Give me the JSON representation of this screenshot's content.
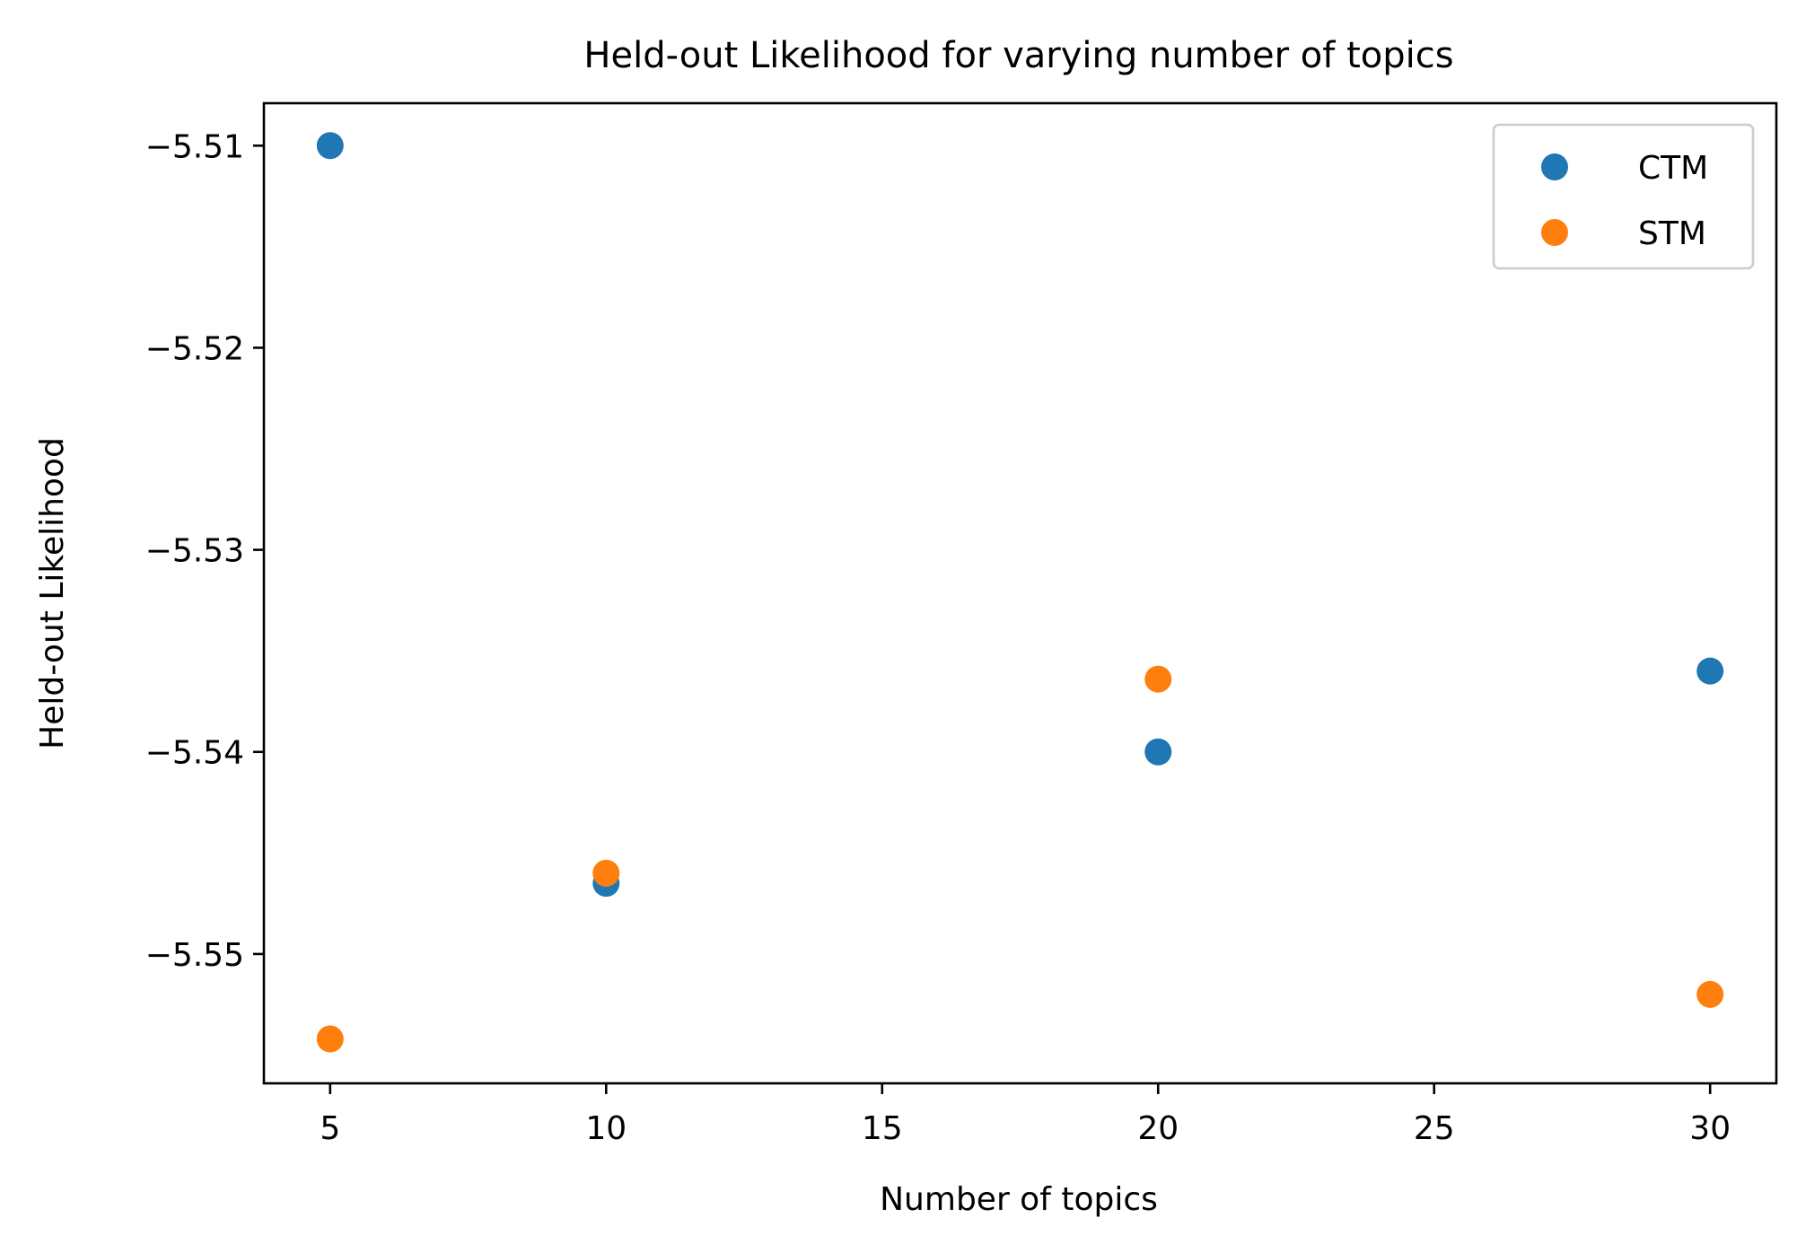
{
  "chart_data": {
    "type": "scatter",
    "title": "Held-out Likelihood for varying number of topics",
    "xlabel": "Number of topics",
    "ylabel": "Held-out Likelihood",
    "xlim": [
      3.8,
      31.2
    ],
    "ylim": [
      -5.5564,
      -5.5079
    ],
    "x_ticks": [
      5,
      10,
      15,
      20,
      25,
      30
    ],
    "x_tick_labels": [
      "5",
      "10",
      "15",
      "20",
      "25",
      "30"
    ],
    "y_ticks": [
      -5.51,
      -5.52,
      -5.53,
      -5.54,
      -5.55
    ],
    "y_tick_labels": [
      "−5.51",
      "−5.52",
      "−5.53",
      "−5.54",
      "−5.55"
    ],
    "grid": false,
    "legend_position": "top-right",
    "series": [
      {
        "name": "CTM",
        "color": "#1f77b4",
        "points": [
          {
            "x": 5,
            "y": -5.51
          },
          {
            "x": 10,
            "y": -5.5465
          },
          {
            "x": 20,
            "y": -5.54
          },
          {
            "x": 30,
            "y": -5.536
          }
        ]
      },
      {
        "name": "STM",
        "color": "#ff7f0e",
        "points": [
          {
            "x": 5,
            "y": -5.5542
          },
          {
            "x": 10,
            "y": -5.546
          },
          {
            "x": 20,
            "y": -5.5364
          },
          {
            "x": 30,
            "y": -5.552
          }
        ]
      }
    ]
  }
}
